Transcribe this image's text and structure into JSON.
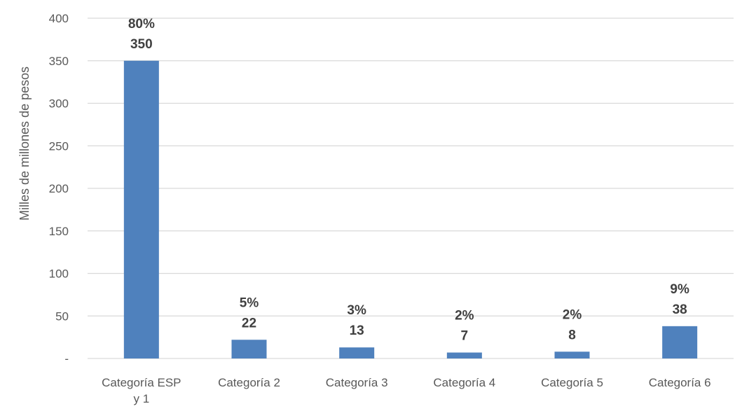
{
  "chart_data": {
    "type": "bar",
    "title": "",
    "xlabel": "",
    "ylabel": "Milles de millones de pesos",
    "ylim": [
      0,
      400
    ],
    "yticks": [
      0,
      50,
      100,
      150,
      200,
      250,
      300,
      350,
      400
    ],
    "ytick_labels": [
      "-",
      "50",
      "100",
      "150",
      "200",
      "250",
      "300",
      "350",
      "400"
    ],
    "categories": [
      [
        "Categoría ESP",
        "y 1"
      ],
      [
        "Categoría 2"
      ],
      [
        "Categoría 3"
      ],
      [
        "Categoría 4"
      ],
      [
        "Categoría 5"
      ],
      [
        "Categoría 6"
      ]
    ],
    "values": [
      350,
      22,
      13,
      7,
      8,
      38
    ],
    "value_labels": [
      "350",
      "22",
      "13",
      "7",
      "8",
      "38"
    ],
    "percent_labels": [
      "80%",
      "5%",
      "3%",
      "2%",
      "2%",
      "9%"
    ],
    "bar_color": "#4f81bd",
    "grid": true,
    "grid_color": "#d9d9d9"
  }
}
